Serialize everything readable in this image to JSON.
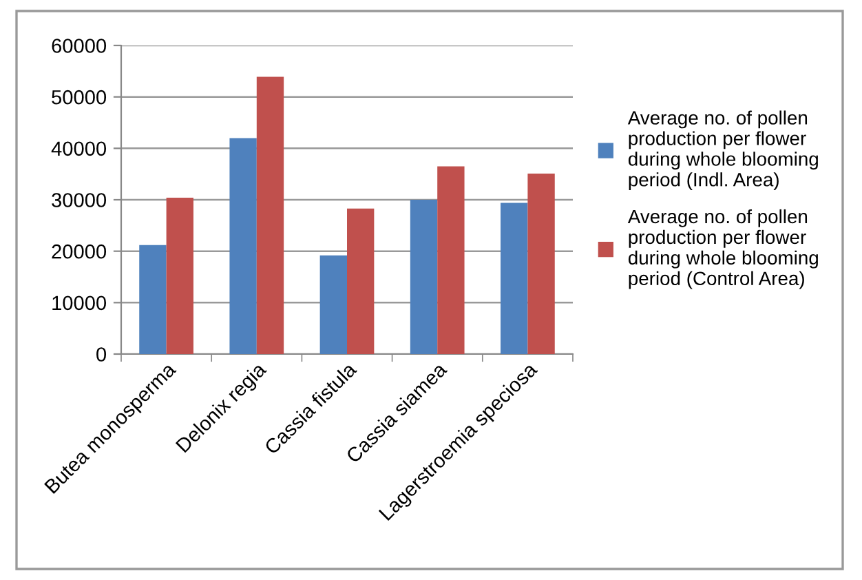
{
  "chart_data": {
    "type": "bar",
    "categories": [
      "Butea monosperma",
      "Delonix regia",
      "Cassia fistula",
      "Cassia siamea",
      "Lagerstroemia speciosa"
    ],
    "series": [
      {
        "name": "Average no. of pollen production per flower during whole blooming period (Indl. Area)",
        "color": "#4f81bd",
        "values": [
          21200,
          42000,
          19200,
          30000,
          29400
        ]
      },
      {
        "name": "Average no. of pollen production per flower during whole blooming period (Control Area)",
        "color": "#c0504d",
        "values": [
          30400,
          53900,
          28300,
          36500,
          35100
        ]
      }
    ],
    "ylim": [
      0,
      60000
    ],
    "yticks": [
      0,
      10000,
      20000,
      30000,
      40000,
      50000,
      60000
    ],
    "grid": "y",
    "legend": "right"
  }
}
